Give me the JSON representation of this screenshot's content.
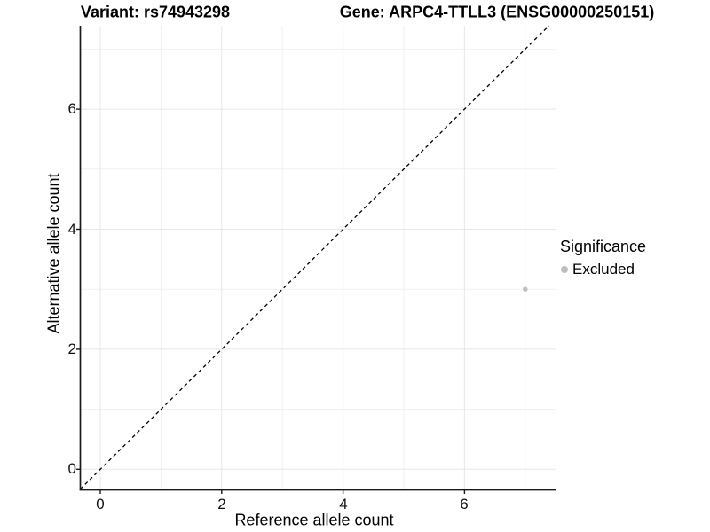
{
  "titles": {
    "variant": "Variant: rs74943298",
    "gene": "Gene: ARPC4-TTLL3 (ENSG00000250151)"
  },
  "chart_data": {
    "type": "scatter",
    "title": "Variant: rs74943298 — Gene: ARPC4-TTLL3 (ENSG00000250151)",
    "xlabel": "Reference allele count",
    "ylabel": "Alternative allele count",
    "xlim": [
      -0.35,
      7.5
    ],
    "ylim": [
      -0.35,
      7.4
    ],
    "x_major_ticks": [
      0,
      2,
      4,
      6
    ],
    "y_major_ticks": [
      0,
      2,
      4,
      6
    ],
    "x_minor_breaks": [
      1,
      3,
      5,
      7
    ],
    "y_minor_breaks": [
      1,
      3,
      5,
      7
    ],
    "grid": true,
    "reference_line": "y = x, black dashed",
    "series": [
      {
        "name": "Excluded",
        "color": "#bdbdbd",
        "points": [
          {
            "x": 7,
            "y": 3
          }
        ]
      }
    ],
    "legend": {
      "title": "Significance",
      "position": "right",
      "entries": [
        "Excluded"
      ]
    }
  }
}
